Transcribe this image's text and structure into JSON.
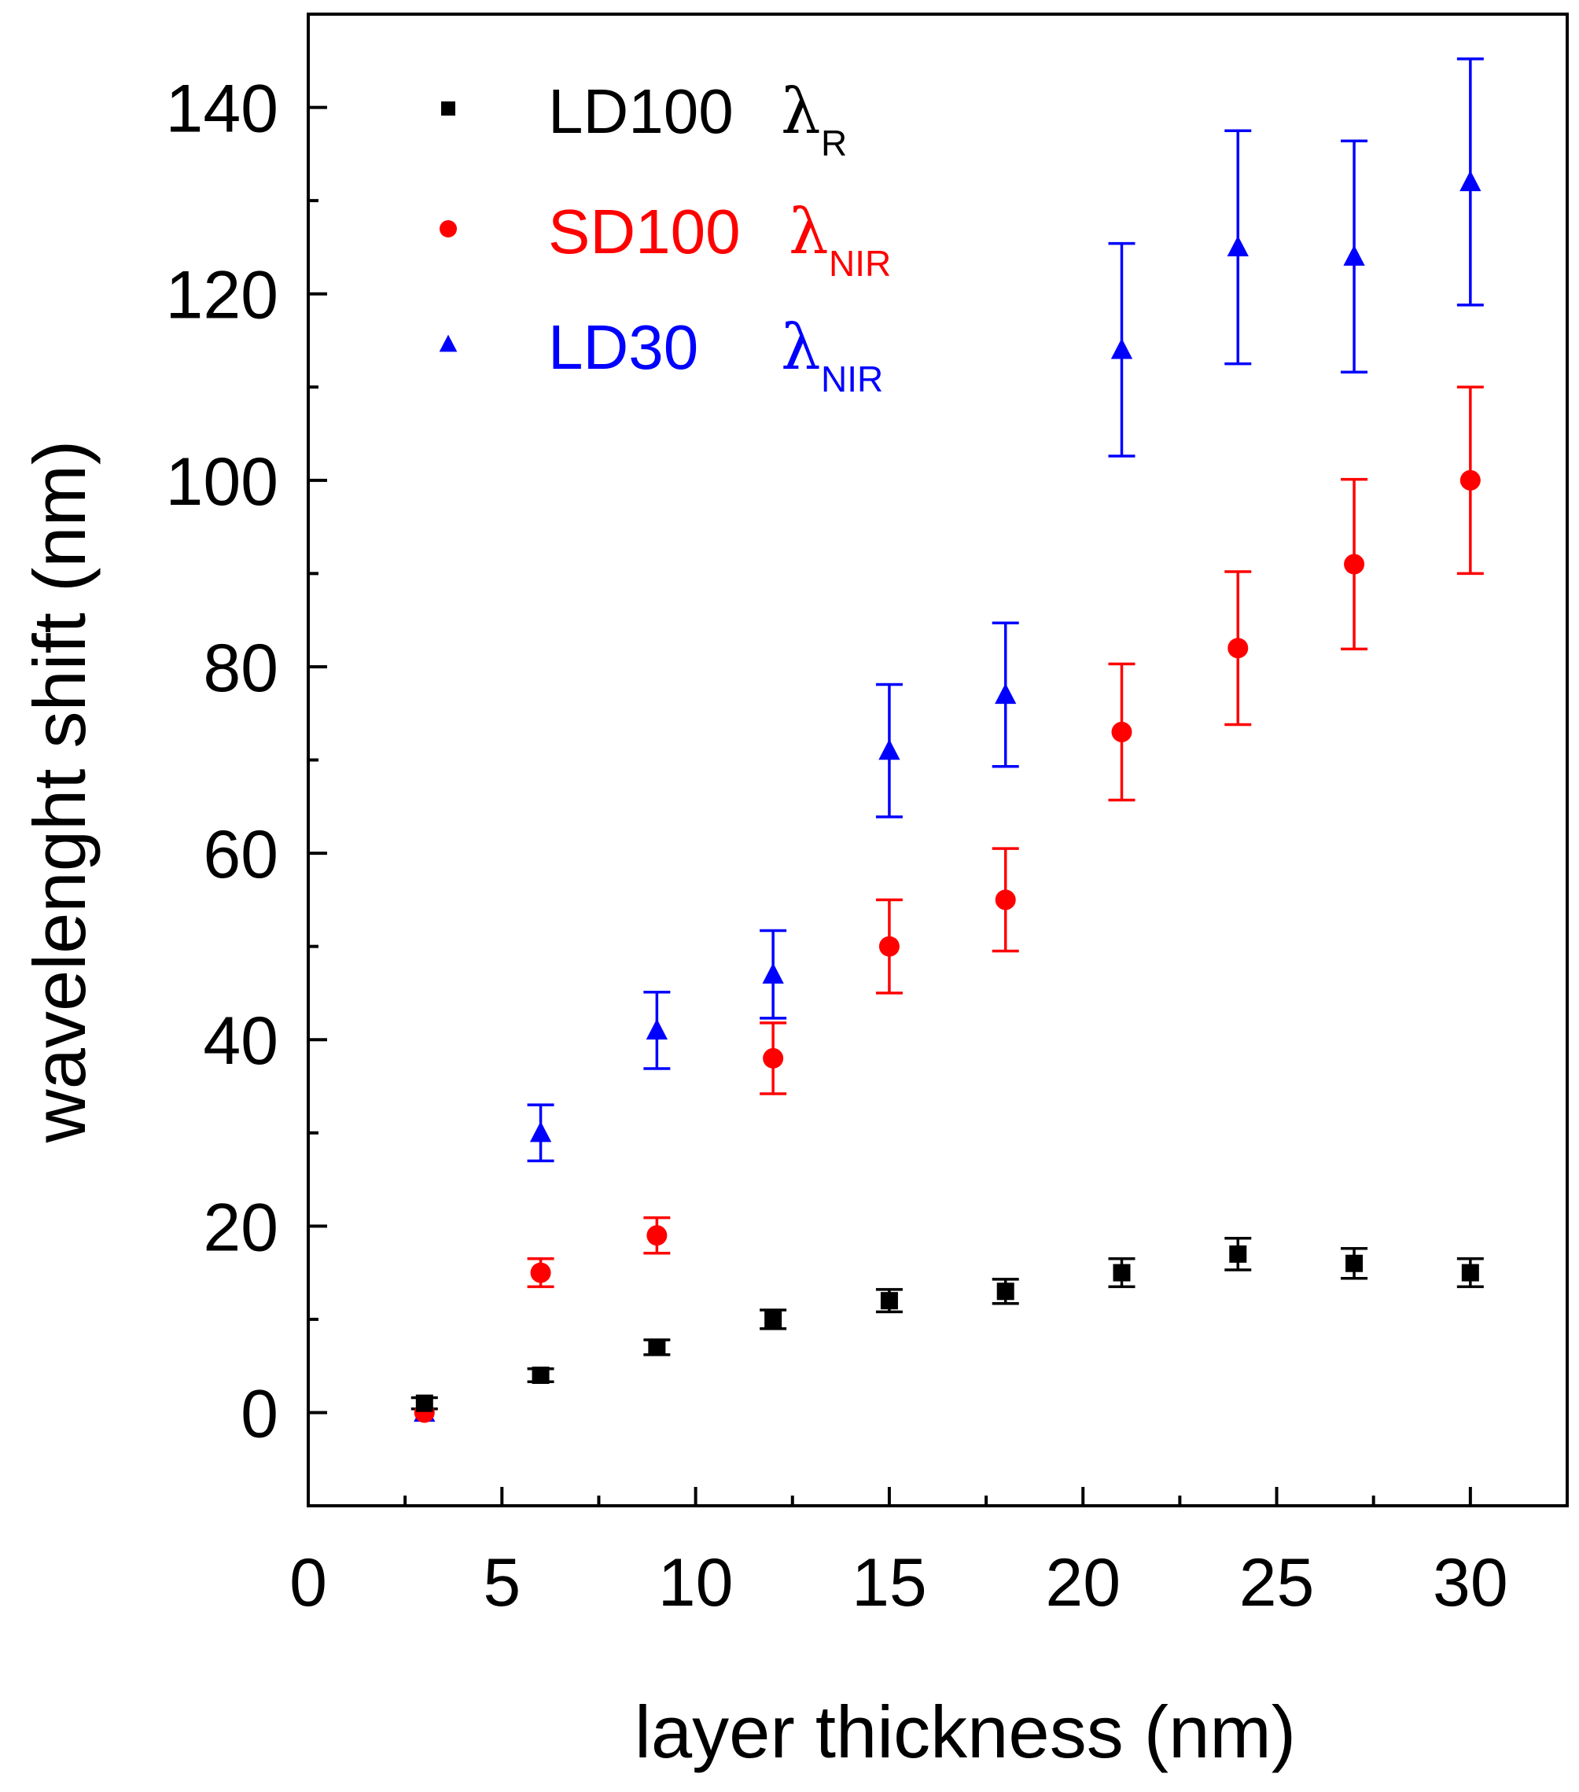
{
  "chart_data": {
    "type": "scatter",
    "title": "",
    "xlabel": "layer thickness (nm)",
    "ylabel": "wavelenght shift (nm)",
    "xlim": [
      0,
      32.5
    ],
    "ylim": [
      -10,
      150
    ],
    "x_major_ticks": [
      0,
      5,
      10,
      15,
      20,
      25,
      30
    ],
    "x_minor_ticks": [
      2.5,
      7.5,
      12.5,
      17.5,
      22.5,
      27.5
    ],
    "y_major_ticks": [
      0,
      20,
      40,
      60,
      80,
      100,
      120,
      140
    ],
    "y_minor_ticks": [
      10,
      30,
      50,
      70,
      90,
      110,
      130
    ],
    "x_tick_labels": [
      "0",
      "5",
      "10",
      "15",
      "20",
      "25",
      "30"
    ],
    "y_tick_labels": [
      "0",
      "20",
      "40",
      "60",
      "80",
      "100",
      "120",
      "140"
    ],
    "grid": false,
    "legend_position": "top-left",
    "series": [
      {
        "name": "LD100",
        "lambda_symbol": "λ",
        "subscript": "R",
        "color": "#000000",
        "marker": "square",
        "x": [
          3,
          6,
          9,
          12,
          15,
          18,
          21,
          24,
          27,
          30
        ],
        "y": [
          1,
          4,
          7,
          10,
          12,
          13,
          15,
          17,
          16,
          15
        ],
        "err": [
          0.6,
          0.7,
          0.8,
          1.0,
          1.2,
          1.3,
          1.5,
          1.7,
          1.6,
          1.5
        ]
      },
      {
        "name": "SD100",
        "lambda_symbol": "λ",
        "subscript": "NIR",
        "color": "#ff0000",
        "marker": "circle",
        "x": [
          3,
          6,
          9,
          12,
          15,
          18,
          21,
          24,
          27,
          30
        ],
        "y": [
          0,
          15,
          19,
          38,
          50,
          55,
          73,
          82,
          91,
          100
        ],
        "err": [
          0,
          1.5,
          1.9,
          3.8,
          5,
          5.5,
          7.3,
          8.2,
          9.1,
          10
        ]
      },
      {
        "name": "LD30",
        "lambda_symbol": "λ",
        "subscript": "NIR",
        "color": "#0000ff",
        "marker": "triangle",
        "x": [
          3,
          6,
          9,
          12,
          15,
          18,
          21,
          24,
          27,
          30
        ],
        "y": [
          0,
          30,
          41,
          47,
          71,
          77,
          114,
          125,
          124,
          132
        ],
        "err": [
          0,
          3,
          4.1,
          4.7,
          7.1,
          7.7,
          11.4,
          12.5,
          12.4,
          13.2
        ]
      }
    ]
  }
}
